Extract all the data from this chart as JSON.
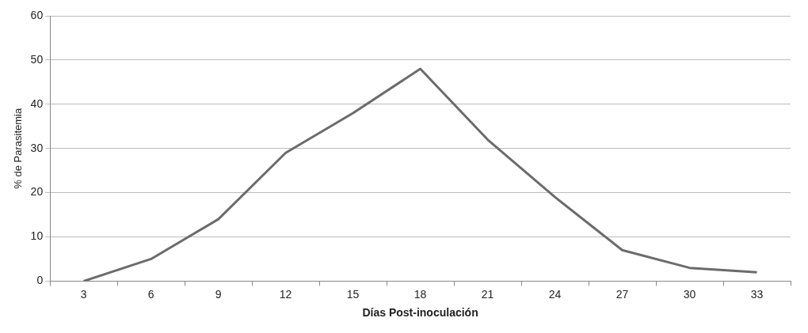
{
  "chart_data": {
    "type": "line",
    "xlabel": "Días Post-inoculación",
    "ylabel": "% de Parasitemia",
    "categories": [
      "3",
      "6",
      "9",
      "12",
      "15",
      "18",
      "21",
      "24",
      "27",
      "30",
      "33"
    ],
    "series": [
      {
        "color": "#6b6b6b",
        "values": [
          0,
          5,
          14,
          29,
          38,
          48,
          32,
          19,
          7,
          3,
          2
        ]
      }
    ],
    "ylim": [
      0,
      60
    ],
    "yticks": [
      0,
      10,
      20,
      30,
      40,
      50,
      60
    ],
    "grid": "y",
    "legend": false,
    "marker": "none",
    "line_style": "solid"
  }
}
